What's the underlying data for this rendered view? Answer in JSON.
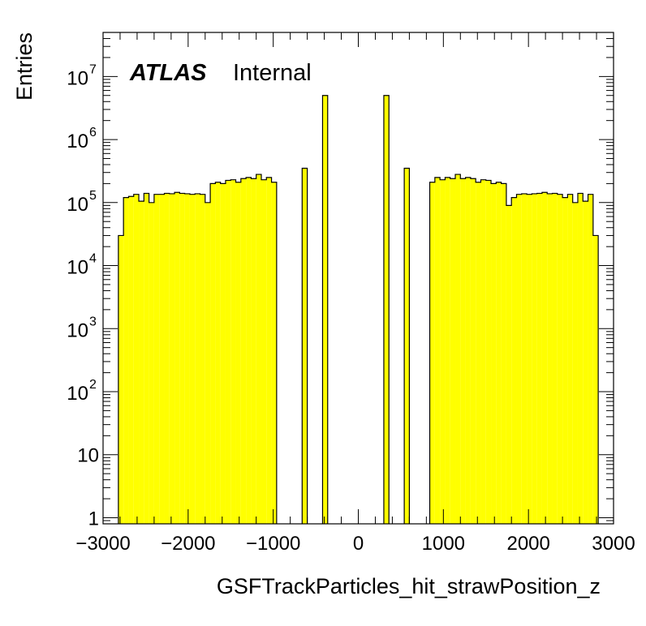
{
  "chart_data": {
    "type": "bar",
    "title": "",
    "xlabel": "GSFTrackParticles_hit_strawPosition_z",
    "ylabel": "Entries",
    "xlim": [
      -3000,
      3000
    ],
    "ylim": [
      0.8,
      50000000
    ],
    "log_y": true,
    "grid": false,
    "legend": "none",
    "fill_color": "#ffff00",
    "line_color": "#000000",
    "x_ticks": [
      {
        "value": -3000,
        "label": "−3000"
      },
      {
        "value": -2000,
        "label": "−2000"
      },
      {
        "value": -1000,
        "label": "−1000"
      },
      {
        "value": 0,
        "label": "0"
      },
      {
        "value": 1000,
        "label": "1000"
      },
      {
        "value": 2000,
        "label": "2000"
      },
      {
        "value": 3000,
        "label": "3000"
      }
    ],
    "y_ticks": [
      {
        "value": 1,
        "base": "1",
        "exp": ""
      },
      {
        "value": 10,
        "base": "10",
        "exp": ""
      },
      {
        "value": 100,
        "base": "10",
        "exp": "2"
      },
      {
        "value": 1000,
        "base": "10",
        "exp": "3"
      },
      {
        "value": 10000,
        "base": "10",
        "exp": "4"
      },
      {
        "value": 100000,
        "base": "10",
        "exp": "5"
      },
      {
        "value": 1000000,
        "base": "10",
        "exp": "6"
      },
      {
        "value": 10000000,
        "base": "10",
        "exp": "7"
      }
    ],
    "bin_width": 60,
    "bin_low_edges": [
      -2820,
      -2760,
      -2700,
      -2640,
      -2580,
      -2520,
      -2460,
      -2400,
      -2340,
      -2280,
      -2220,
      -2160,
      -2100,
      -2040,
      -1980,
      -1920,
      -1860,
      -1800,
      -1740,
      -1680,
      -1620,
      -1560,
      -1500,
      -1440,
      -1380,
      -1320,
      -1260,
      -1200,
      -1140,
      -1080,
      -1020,
      -660,
      -420,
      300,
      540,
      840,
      900,
      960,
      1020,
      1080,
      1140,
      1200,
      1260,
      1320,
      1380,
      1440,
      1500,
      1560,
      1620,
      1680,
      1740,
      1800,
      1860,
      1920,
      1980,
      2040,
      2100,
      2160,
      2220,
      2280,
      2340,
      2400,
      2460,
      2520,
      2580,
      2640,
      2700,
      2760
    ],
    "values": [
      30000,
      120000,
      125000,
      135000,
      105000,
      140000,
      100000,
      135000,
      135000,
      140000,
      138000,
      145000,
      140000,
      138000,
      135000,
      138000,
      135000,
      100000,
      200000,
      210000,
      200000,
      225000,
      230000,
      210000,
      240000,
      250000,
      240000,
      280000,
      230000,
      250000,
      210000,
      350000,
      5000000,
      5000000,
      350000,
      210000,
      250000,
      230000,
      250000,
      240000,
      280000,
      240000,
      250000,
      240000,
      210000,
      230000,
      225000,
      200000,
      210000,
      200000,
      90000,
      120000,
      135000,
      138000,
      135000,
      138000,
      140000,
      145000,
      138000,
      140000,
      135000,
      120000,
      135000,
      100000,
      140000,
      105000,
      135000,
      30000
    ]
  },
  "labels": {
    "atlas": "ATLAS",
    "internal": "Internal"
  }
}
